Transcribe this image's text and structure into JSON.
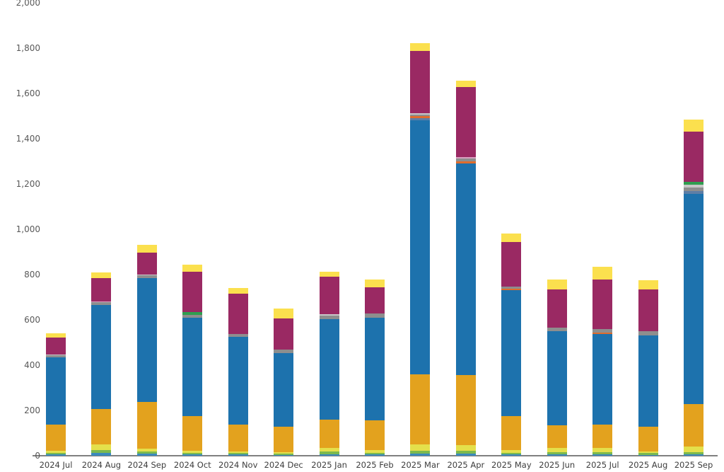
{
  "chart_data": {
    "type": "bar",
    "stacked": true,
    "title": "",
    "xlabel": "",
    "ylabel": "",
    "ylim": [
      0,
      2000
    ],
    "grid": false,
    "legend_position": "none",
    "background_color": "#ffffff",
    "axis_line_color": "#808080",
    "y_tick_label_color": "#595959",
    "x_tick_label_color": "#3d3d3d",
    "categories": [
      "2024 Jul",
      "2024 Aug",
      "2024 Sep",
      "2024 Oct",
      "2024 Nov",
      "2024 Dec",
      "2025 Jan",
      "2025 Feb",
      "2025 Mar",
      "2025 Apr",
      "2025 May",
      "2025 Jun",
      "2025 Jul",
      "2025 Aug",
      "2025 Sep"
    ],
    "totals": [
      540,
      809,
      930,
      843,
      742,
      649,
      812,
      778,
      1822,
      1658,
      983,
      779,
      836,
      774,
      1485
    ],
    "y_ticks": [
      {
        "value": 0,
        "label": "0"
      },
      {
        "value": 200,
        "label": "200"
      },
      {
        "value": 400,
        "label": "400"
      },
      {
        "value": 600,
        "label": "600"
      },
      {
        "value": 800,
        "label": "800"
      },
      {
        "value": 1000,
        "label": "1,000"
      },
      {
        "value": 1200,
        "label": "1,200"
      },
      {
        "value": 1400,
        "label": "1,400"
      },
      {
        "value": 1600,
        "label": "1,600"
      },
      {
        "value": 1800,
        "label": "1,800"
      },
      {
        "value": 2000,
        "label": "2,000"
      }
    ],
    "series": [
      {
        "name": "steel-blue",
        "color": "#3b8abd",
        "values": [
          6,
          14,
          8,
          6,
          5,
          4,
          7,
          6,
          10,
          10,
          5,
          5,
          5,
          4,
          6
        ]
      },
      {
        "name": "green",
        "color": "#7cb94e",
        "values": [
          8,
          12,
          10,
          7,
          7,
          6,
          11,
          8,
          12,
          12,
          9,
          11,
          10,
          8,
          10
        ]
      },
      {
        "name": "yellow-green",
        "color": "#e4e04b",
        "values": [
          7,
          23,
          14,
          8,
          8,
          6,
          15,
          12,
          29,
          24,
          12,
          20,
          18,
          8,
          24
        ]
      },
      {
        "name": "amber",
        "color": "#e3a21e",
        "values": [
          116,
          158,
          206,
          154,
          119,
          111,
          128,
          129,
          307,
          309,
          149,
          98,
          104,
          109,
          187
        ]
      },
      {
        "name": "blue",
        "color": "#1d72ad",
        "values": [
          297,
          460,
          548,
          435,
          385,
          325,
          443,
          455,
          1124,
          935,
          555,
          415,
          400,
          404,
          930
        ]
      },
      {
        "name": "slate",
        "color": "#5d7ea6",
        "values": [
          0,
          0,
          0,
          0,
          0,
          0,
          0,
          0,
          10,
          0,
          0,
          0,
          0,
          0,
          13
        ]
      },
      {
        "name": "burnt-orange",
        "color": "#df6d2d",
        "values": [
          0,
          0,
          0,
          0,
          0,
          0,
          0,
          0,
          8,
          10,
          7,
          0,
          8,
          0,
          0
        ]
      },
      {
        "name": "gray",
        "color": "#8e8e8e",
        "values": [
          10,
          12,
          12,
          13,
          15,
          17,
          14,
          18,
          8,
          12,
          11,
          16,
          15,
          16,
          16
        ]
      },
      {
        "name": "silver",
        "color": "#c7c7c7",
        "values": [
          4,
          0,
          3,
          0,
          0,
          0,
          7,
          0,
          6,
          0,
          0,
          0,
          0,
          0,
          10
        ]
      },
      {
        "name": "dark-green",
        "color": "#2f9e4f",
        "values": [
          0,
          0,
          0,
          12,
          0,
          0,
          0,
          0,
          0,
          0,
          0,
          0,
          0,
          0,
          13
        ]
      },
      {
        "name": "pink",
        "color": "#d8a0c0",
        "values": [
          0,
          3,
          0,
          0,
          0,
          0,
          0,
          0,
          0,
          7,
          0,
          0,
          0,
          0,
          0
        ]
      },
      {
        "name": "maroon",
        "color": "#9a2963",
        "values": [
          74,
          104,
          96,
          177,
          176,
          138,
          166,
          117,
          274,
          308,
          195,
          169,
          218,
          185,
          221
        ]
      },
      {
        "name": "yellow",
        "color": "#fbe04e",
        "values": [
          18,
          23,
          33,
          31,
          27,
          42,
          21,
          33,
          34,
          31,
          40,
          45,
          58,
          40,
          55
        ]
      }
    ]
  }
}
